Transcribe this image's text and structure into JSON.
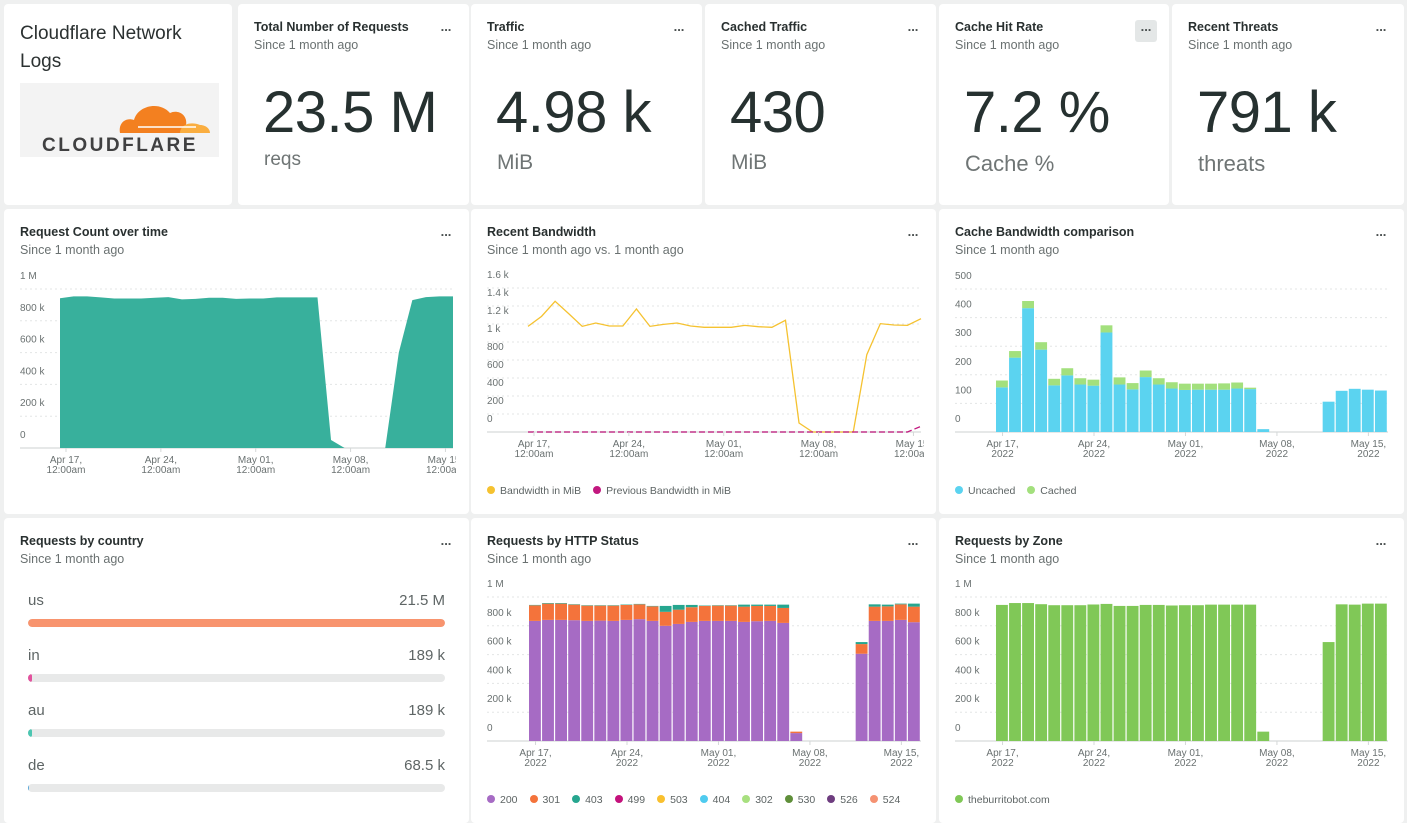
{
  "dashboard": {
    "title": "Cloudflare Network Logs",
    "logo_text": "CLOUDFLARE",
    "more_label": "...",
    "since": "Since 1 month ago"
  },
  "stats": [
    {
      "title": "Total Number of Requests",
      "subtitle": "Since 1 month ago",
      "value": "23.5 M",
      "unit": "reqs"
    },
    {
      "title": "Traffic",
      "subtitle": "Since 1 month ago",
      "value": "4.98 k",
      "unit": "MiB"
    },
    {
      "title": "Cached Traffic",
      "subtitle": "Since 1 month ago",
      "value": "430",
      "unit": "MiB"
    },
    {
      "title": "Cache Hit Rate",
      "subtitle": "Since 1 month ago",
      "value": "7.2 %",
      "unit": "Cache %"
    },
    {
      "title": "Recent Threats",
      "subtitle": "Since 1 month ago",
      "value": "791 k",
      "unit": "threats"
    }
  ],
  "countries": {
    "title": "Requests by country",
    "subtitle": "Since 1 month ago",
    "items": [
      {
        "name": "us",
        "value": "21.5 M",
        "fraction": 1.0,
        "color": "#f8946e"
      },
      {
        "name": "in",
        "value": "189 k",
        "fraction": 0.0088,
        "color": "#e2529d"
      },
      {
        "name": "au",
        "value": "189 k",
        "fraction": 0.0088,
        "color": "#4cc6b1"
      },
      {
        "name": "de",
        "value": "68.5 k",
        "fraction": 0.0032,
        "color": "#5aa7d8"
      }
    ]
  },
  "colors": {
    "area": "#38b09c",
    "bandwidth": "#f5c230",
    "previous": "#c2187f",
    "uncached": "#5bd3f0",
    "cached": "#a3e07d",
    "zone": "#80c857"
  },
  "chart_data": [
    {
      "id": "request-count",
      "title": "Request Count over time",
      "subtitle": "Since 1 month ago",
      "type": "area",
      "x": [
        "2022-04-17",
        "2022-04-18",
        "2022-04-19",
        "2022-04-20",
        "2022-04-21",
        "2022-04-22",
        "2022-04-23",
        "2022-04-24",
        "2022-04-25",
        "2022-04-26",
        "2022-04-27",
        "2022-04-28",
        "2022-04-29",
        "2022-04-30",
        "2022-05-01",
        "2022-05-02",
        "2022-05-03",
        "2022-05-04",
        "2022-05-05",
        "2022-05-06",
        "2022-05-07",
        "2022-05-08",
        "2022-05-09",
        "2022-05-10",
        "2022-05-11",
        "2022-05-12",
        "2022-05-13",
        "2022-05-14",
        "2022-05-15",
        "2022-05-16"
      ],
      "series": [
        {
          "values": [
            942000,
            954000,
            954000,
            947000,
            940000,
            940000,
            940000,
            945000,
            949000,
            935000,
            938000,
            945000,
            945000,
            938000,
            940000,
            940000,
            947000,
            947000,
            947000,
            947000,
            50000,
            0,
            0,
            0,
            0,
            600000,
            930000,
            949000,
            954000,
            954000
          ],
          "color": "#38b09c"
        }
      ],
      "ylim": [
        0,
        1000000
      ],
      "yticks": [
        "0",
        "200 k",
        "400 k",
        "600 k",
        "800 k",
        "1 M"
      ],
      "xticks": [
        {
          "label": [
            "Apr 17,",
            "12:00am"
          ]
        },
        {
          "label": [
            "Apr 24,",
            "12:00am"
          ]
        },
        {
          "label": [
            "May 01,",
            "12:00am"
          ]
        },
        {
          "label": [
            "May 08,",
            "12:00am"
          ]
        },
        {
          "label": [
            "May 15,",
            "12:00am"
          ]
        }
      ],
      "grid": true
    },
    {
      "id": "recent-bandwidth",
      "title": "Recent Bandwidth",
      "subtitle": "Since 1 month ago vs. 1 month ago",
      "type": "line",
      "series": [
        {
          "name": "Bandwidth in MiB",
          "color": "#f5c230",
          "values": [
            1174,
            1285,
            1452,
            1315,
            1174,
            1211,
            1178,
            1178,
            1367,
            1174,
            1196,
            1211,
            1178,
            1163,
            1163,
            1163,
            1185,
            1170,
            1163,
            1241,
            100,
            0,
            0,
            0,
            0,
            859,
            1204,
            1189,
            1185,
            1259
          ]
        },
        {
          "name": "Previous Bandwidth in MiB",
          "color": "#c2187f",
          "dashed": true,
          "values": [
            0,
            0,
            0,
            0,
            0,
            0,
            0,
            0,
            0,
            0,
            0,
            0,
            0,
            0,
            0,
            0,
            0,
            0,
            0,
            0,
            0,
            0,
            0,
            0,
            0,
            0,
            0,
            0,
            0,
            63
          ]
        }
      ],
      "ylim": [
        0,
        1600
      ],
      "yticks": [
        "0",
        "200",
        "400",
        "600",
        "800",
        "1 k",
        "1.2 k",
        "1.4 k",
        "1.6 k"
      ],
      "xticks": [
        {
          "label": [
            "Apr 17,",
            "12:00am"
          ]
        },
        {
          "label": [
            "Apr 24,",
            "12:00am"
          ]
        },
        {
          "label": [
            "May 01,",
            "12:00am"
          ]
        },
        {
          "label": [
            "May 08,",
            "12:00am"
          ]
        },
        {
          "label": [
            "May 15,",
            "12:00am"
          ]
        }
      ],
      "legend": "bottom-left",
      "grid": true
    },
    {
      "id": "cache-bandwidth",
      "title": "Cache Bandwidth comparison",
      "subtitle": "Since 1 month ago",
      "type": "bar",
      "stacked": true,
      "series": [
        {
          "name": "Uncached",
          "color": "#5bd3f0",
          "values": [
            156,
            260,
            433,
            288,
            163,
            198,
            166,
            162,
            348,
            166,
            149,
            192,
            166,
            152,
            147,
            148,
            148,
            148,
            152,
            150,
            10,
            0,
            0,
            0,
            0,
            106,
            144,
            151,
            148,
            145
          ]
        },
        {
          "name": "Cached",
          "color": "#a3e07d",
          "values": [
            24,
            23,
            25,
            26,
            23,
            25,
            22,
            21,
            25,
            25,
            22,
            23,
            22,
            22,
            22,
            21,
            21,
            22,
            21,
            5,
            0,
            0,
            0,
            0,
            0,
            0,
            0,
            0,
            0,
            0
          ]
        }
      ],
      "ylim": [
        0,
        500
      ],
      "yticks": [
        "0",
        "100",
        "200",
        "300",
        "400",
        "500"
      ],
      "xticks": [
        {
          "label": [
            "Apr 17,",
            "2022"
          ]
        },
        {
          "label": [
            "Apr 24,",
            "2022"
          ]
        },
        {
          "label": [
            "May 01,",
            "2022"
          ]
        },
        {
          "label": [
            "May 08,",
            "2022"
          ]
        },
        {
          "label": [
            "May 15,",
            "2022"
          ]
        }
      ],
      "legend": "bottom-left",
      "grid": true
    },
    {
      "id": "http-status",
      "title": "Requests by HTTP Status",
      "subtitle": "Since 1 month ago",
      "type": "bar",
      "stacked": true,
      "series": [
        {
          "name": "200",
          "color": "#a66bc4",
          "values": [
            834000,
            841000,
            841000,
            839000,
            834000,
            836000,
            834000,
            841000,
            846000,
            834000,
            800000,
            813000,
            827000,
            834000,
            834000,
            834000,
            827000,
            832000,
            834000,
            820000,
            55000,
            0,
            0,
            0,
            0,
            606000,
            834000,
            834000,
            841000,
            825000
          ]
        },
        {
          "name": "301",
          "color": "#f4733b",
          "values": [
            108000,
            113000,
            113000,
            108000,
            106000,
            104000,
            106000,
            104000,
            103000,
            101000,
            97000,
            99000,
            102000,
            104000,
            106000,
            106000,
            106000,
            106000,
            104000,
            104000,
            10000,
            0,
            0,
            0,
            0,
            67000,
            99000,
            101000,
            108000,
            108000
          ]
        },
        {
          "name": "403",
          "color": "#26a68f",
          "values": [
            3000,
            4000,
            4000,
            3000,
            3000,
            3000,
            3000,
            3000,
            3000,
            3000,
            41000,
            33000,
            16000,
            3000,
            3000,
            3000,
            14000,
            9000,
            9000,
            23000,
            0,
            0,
            0,
            0,
            0,
            14000,
            16000,
            12000,
            5000,
            21000
          ]
        },
        {
          "name": "499",
          "color": "#c4127c",
          "values": []
        },
        {
          "name": "503",
          "color": "#f9c02e",
          "values": []
        },
        {
          "name": "404",
          "color": "#4fcbef",
          "values": []
        },
        {
          "name": "302",
          "color": "#a8e07f",
          "values": []
        },
        {
          "name": "530",
          "color": "#5f8f3a",
          "values": []
        },
        {
          "name": "526",
          "color": "#6e3d7f",
          "values": []
        },
        {
          "name": "524",
          "color": "#f59272",
          "values": []
        }
      ],
      "ylim": [
        0,
        1000000
      ],
      "yticks": [
        "0",
        "200 k",
        "400 k",
        "600 k",
        "800 k",
        "1 M"
      ],
      "xticks": [
        {
          "label": [
            "Apr 17,",
            "2022"
          ]
        },
        {
          "label": [
            "Apr 24,",
            "2022"
          ]
        },
        {
          "label": [
            "May 01,",
            "2022"
          ]
        },
        {
          "label": [
            "May 08,",
            "2022"
          ]
        },
        {
          "label": [
            "May 15,",
            "2022"
          ]
        }
      ],
      "legend": "bottom-left",
      "grid": true
    },
    {
      "id": "zone",
      "title": "Requests by Zone",
      "subtitle": "Since 1 month ago",
      "type": "bar",
      "series": [
        {
          "name": "theburritobot.com",
          "color": "#80c857",
          "values": [
            945000,
            958000,
            958000,
            950000,
            943000,
            943000,
            943000,
            948000,
            952000,
            938000,
            938000,
            945000,
            945000,
            941000,
            943000,
            943000,
            947000,
            947000,
            947000,
            947000,
            65000,
            0,
            0,
            0,
            0,
            687000,
            949000,
            947000,
            954000,
            954000
          ]
        }
      ],
      "ylim": [
        0,
        1000000
      ],
      "yticks": [
        "0",
        "200 k",
        "400 k",
        "600 k",
        "800 k",
        "1 M"
      ],
      "xticks": [
        {
          "label": [
            "Apr 17,",
            "2022"
          ]
        },
        {
          "label": [
            "Apr 24,",
            "2022"
          ]
        },
        {
          "label": [
            "May 01,",
            "2022"
          ]
        },
        {
          "label": [
            "May 08,",
            "2022"
          ]
        },
        {
          "label": [
            "May 15,",
            "2022"
          ]
        }
      ],
      "legend": "bottom-left",
      "grid": true
    }
  ]
}
